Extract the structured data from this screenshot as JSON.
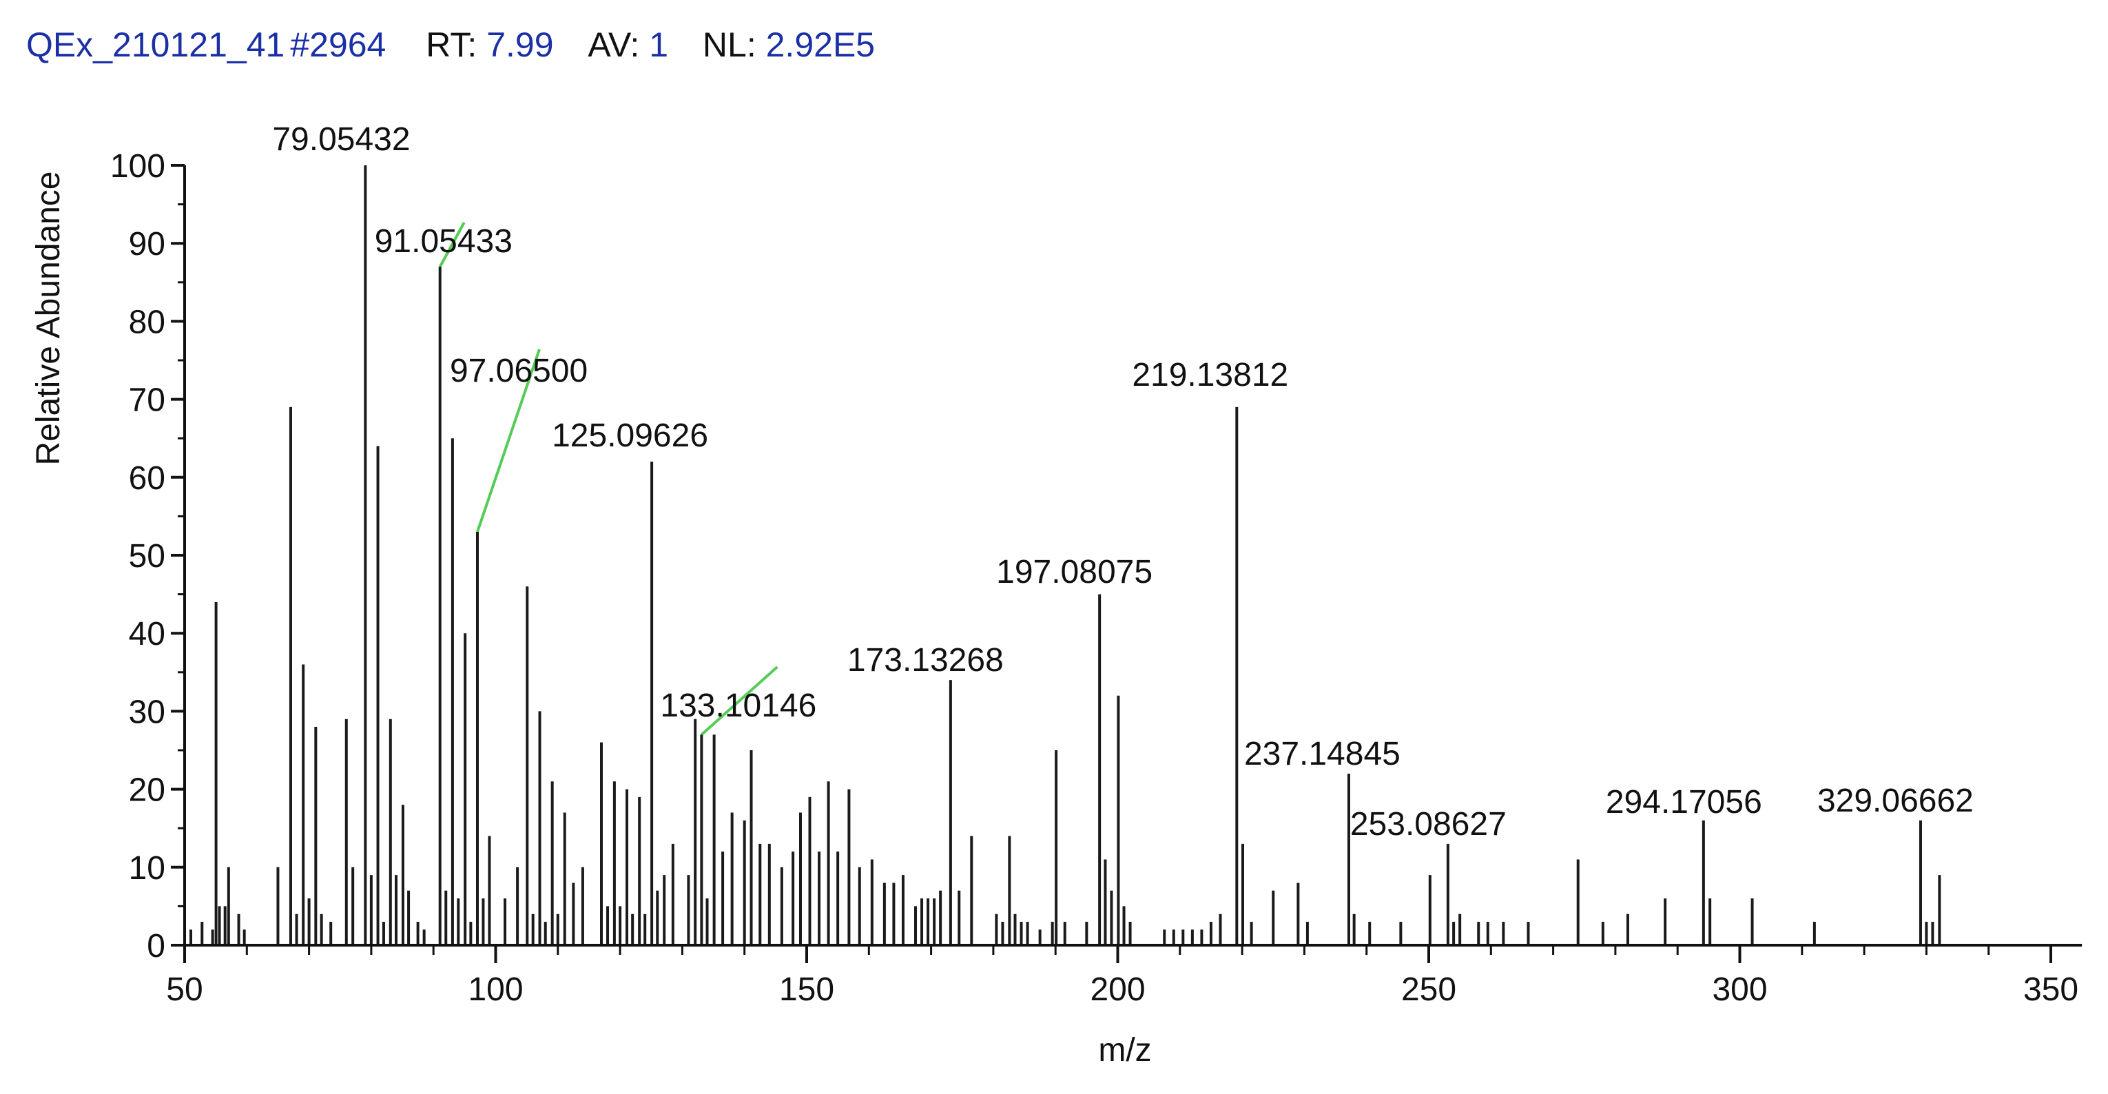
{
  "header": {
    "file": "QEx_210121_41",
    "scan": "#2964",
    "rt_label": "RT:",
    "rt_value": "7.99",
    "av_label": "AV:",
    "av_value": "1",
    "nl_label": "NL:",
    "nl_value": "2.92E5",
    "value_color": "#1b2fa6"
  },
  "chart_data": {
    "type": "bar",
    "xlabel": "m/z",
    "ylabel": "Relative Abundance",
    "xlim": [
      50,
      355
    ],
    "ylim": [
      0,
      100
    ],
    "x_ticks": [
      50,
      100,
      150,
      200,
      250,
      300,
      350
    ],
    "y_ticks": [
      0,
      10,
      20,
      30,
      40,
      50,
      60,
      70,
      80,
      90,
      100
    ],
    "grid": false,
    "peaks": [
      [
        51.0,
        2
      ],
      [
        52.8,
        3
      ],
      [
        54.5,
        2
      ],
      [
        55.05,
        44
      ],
      [
        55.6,
        5
      ],
      [
        56.5,
        5
      ],
      [
        57.07,
        10
      ],
      [
        58.7,
        4
      ],
      [
        59.6,
        2
      ],
      [
        65.0,
        10
      ],
      [
        67.05,
        69
      ],
      [
        68.0,
        4
      ],
      [
        69.07,
        36
      ],
      [
        70.0,
        6
      ],
      [
        71.08,
        28
      ],
      [
        72.0,
        4
      ],
      [
        73.5,
        3
      ],
      [
        76.0,
        29
      ],
      [
        77.04,
        10
      ],
      [
        79.05432,
        100
      ],
      [
        80.0,
        9
      ],
      [
        81.07,
        64
      ],
      [
        82.0,
        3
      ],
      [
        83.09,
        29
      ],
      [
        84.0,
        9
      ],
      [
        85.1,
        18
      ],
      [
        86.0,
        7
      ],
      [
        87.5,
        3
      ],
      [
        88.5,
        2
      ],
      [
        91.05433,
        87
      ],
      [
        92.0,
        7
      ],
      [
        93.07,
        65
      ],
      [
        94.0,
        6
      ],
      [
        95.09,
        40
      ],
      [
        96.0,
        3
      ],
      [
        97.065,
        53
      ],
      [
        98.0,
        6
      ],
      [
        99.0,
        14
      ],
      [
        101.5,
        6
      ],
      [
        103.5,
        10
      ],
      [
        105.07,
        46
      ],
      [
        106.0,
        4
      ],
      [
        107.09,
        30
      ],
      [
        108.0,
        3
      ],
      [
        109.1,
        21
      ],
      [
        110.0,
        4
      ],
      [
        111.1,
        17
      ],
      [
        112.5,
        8
      ],
      [
        114.0,
        10
      ],
      [
        117.0,
        26
      ],
      [
        118.0,
        5
      ],
      [
        119.09,
        21
      ],
      [
        120.0,
        5
      ],
      [
        121.1,
        20
      ],
      [
        122.0,
        4
      ],
      [
        123.11,
        19
      ],
      [
        124.0,
        4
      ],
      [
        125.09626,
        62
      ],
      [
        126.0,
        7
      ],
      [
        127.1,
        9
      ],
      [
        128.5,
        13
      ],
      [
        131.0,
        9
      ],
      [
        132.08,
        29
      ],
      [
        133.10146,
        27
      ],
      [
        134.0,
        6
      ],
      [
        135.12,
        27
      ],
      [
        136.5,
        12
      ],
      [
        138.0,
        17
      ],
      [
        140.0,
        16
      ],
      [
        141.09,
        25
      ],
      [
        142.5,
        13
      ],
      [
        144.0,
        13
      ],
      [
        146.0,
        10
      ],
      [
        147.8,
        12
      ],
      [
        149.0,
        17
      ],
      [
        150.5,
        19
      ],
      [
        152.0,
        12
      ],
      [
        153.5,
        21
      ],
      [
        155.0,
        12
      ],
      [
        156.8,
        20
      ],
      [
        158.5,
        10
      ],
      [
        160.5,
        11
      ],
      [
        162.5,
        8
      ],
      [
        164.0,
        8
      ],
      [
        165.5,
        9
      ],
      [
        167.5,
        5
      ],
      [
        168.5,
        6
      ],
      [
        169.5,
        6
      ],
      [
        170.5,
        6
      ],
      [
        171.5,
        7
      ],
      [
        173.13268,
        34
      ],
      [
        174.5,
        7
      ],
      [
        176.5,
        14
      ],
      [
        180.5,
        4
      ],
      [
        181.5,
        3
      ],
      [
        182.6,
        14
      ],
      [
        183.5,
        4
      ],
      [
        184.5,
        3
      ],
      [
        185.5,
        3
      ],
      [
        187.5,
        2
      ],
      [
        189.5,
        3
      ],
      [
        190.1,
        25
      ],
      [
        191.5,
        3
      ],
      [
        195.0,
        3
      ],
      [
        197.08075,
        45
      ],
      [
        198.0,
        11
      ],
      [
        199.0,
        7
      ],
      [
        200.1,
        32
      ],
      [
        201.0,
        5
      ],
      [
        202.0,
        3
      ],
      [
        207.5,
        2
      ],
      [
        209.0,
        2
      ],
      [
        210.5,
        2
      ],
      [
        212.0,
        2
      ],
      [
        213.5,
        2
      ],
      [
        215.0,
        3
      ],
      [
        216.5,
        4
      ],
      [
        219.13812,
        69
      ],
      [
        220.1,
        13
      ],
      [
        221.5,
        3
      ],
      [
        225.0,
        7
      ],
      [
        229.0,
        8
      ],
      [
        230.5,
        3
      ],
      [
        237.14845,
        22
      ],
      [
        238.0,
        4
      ],
      [
        240.5,
        3
      ],
      [
        245.5,
        3
      ],
      [
        250.2,
        9
      ],
      [
        253.08627,
        13
      ],
      [
        254.0,
        3
      ],
      [
        255.0,
        4
      ],
      [
        258.0,
        3
      ],
      [
        259.5,
        3
      ],
      [
        262.0,
        3
      ],
      [
        266.0,
        3
      ],
      [
        274.0,
        11
      ],
      [
        278.0,
        3
      ],
      [
        282.0,
        4
      ],
      [
        288.0,
        6
      ],
      [
        294.17056,
        16
      ],
      [
        295.2,
        6
      ],
      [
        302.0,
        6
      ],
      [
        312.0,
        3
      ],
      [
        329.06662,
        16
      ],
      [
        330.0,
        3
      ],
      [
        331.0,
        3
      ],
      [
        332.1,
        9
      ]
    ],
    "peak_labels": [
      {
        "mz": 79.05432,
        "text": "79.05432"
      },
      {
        "mz": 91.05433,
        "text": "91.05433"
      },
      {
        "mz": 97.065,
        "text": "97.06500"
      },
      {
        "mz": 125.09626,
        "text": "125.09626"
      },
      {
        "mz": 133.10146,
        "text": "133.10146"
      },
      {
        "mz": 173.13268,
        "text": "173.13268"
      },
      {
        "mz": 197.08075,
        "text": "197.08075"
      },
      {
        "mz": 219.13812,
        "text": "219.13812"
      },
      {
        "mz": 237.14845,
        "text": "237.14845"
      },
      {
        "mz": 253.08627,
        "text": "253.08627"
      },
      {
        "mz": 294.17056,
        "text": "294.17056"
      },
      {
        "mz": 329.06662,
        "text": "329.06662"
      }
    ],
    "leader_color": "#55cc55"
  }
}
